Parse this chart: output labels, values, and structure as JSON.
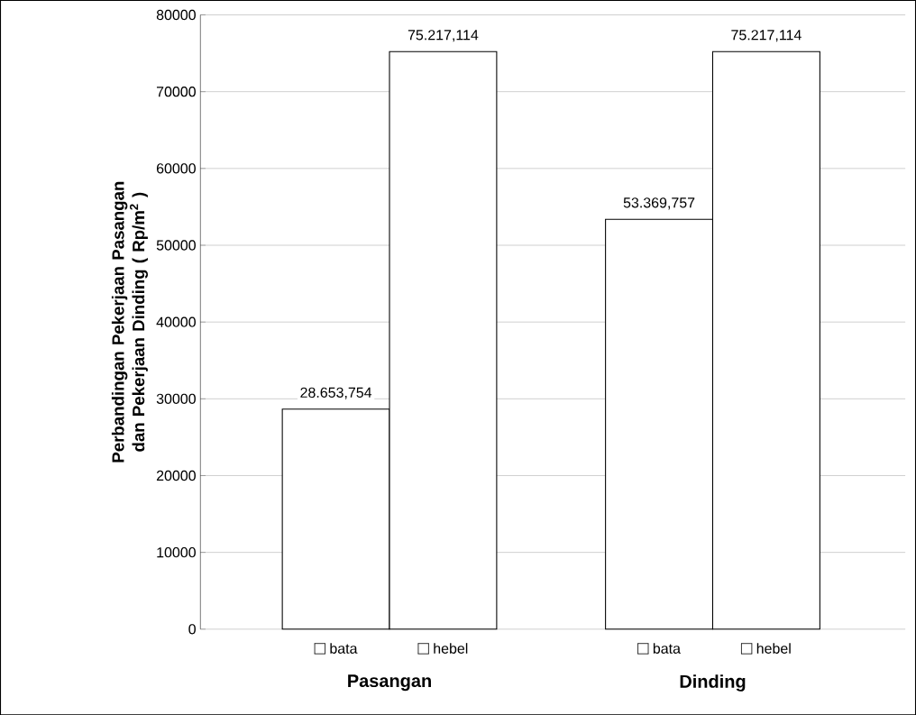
{
  "chart_data": {
    "type": "bar",
    "ylabel": "Perbandingan Pekerjaan Pasangan dan Pekerjaan Dinding ( Rp/m$^{2}$ )",
    "categories": [
      "Pasangan",
      "Dinding"
    ],
    "series": [
      {
        "name": "bata",
        "color": "#ffffff",
        "values": [
          28653.754,
          53369.757
        ],
        "value_labels": [
          "28.653,754",
          "53.369,757"
        ]
      },
      {
        "name": "hebel",
        "color": "#ffffff",
        "values": [
          75217.114,
          75217.114
        ],
        "value_labels": [
          "75.217,114",
          "75.217,114"
        ]
      }
    ],
    "ylim": [
      0,
      80000
    ],
    "yticks": [
      0,
      10000,
      20000,
      30000,
      40000,
      50000,
      60000,
      70000,
      80000
    ],
    "grid": "y",
    "legend": "bottom"
  }
}
